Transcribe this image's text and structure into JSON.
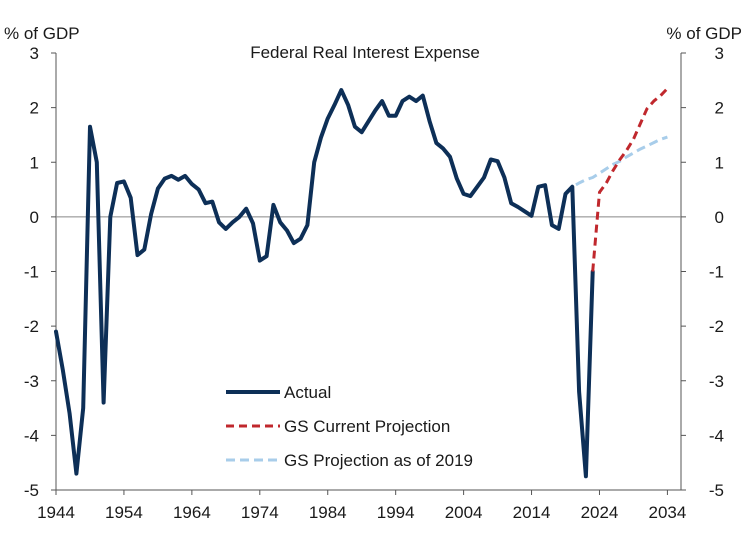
{
  "chart_data": {
    "type": "line",
    "title": "Federal Real Interest Expense",
    "ylabel_left": "% of GDP",
    "ylabel_right": "% of GDP",
    "xlim": [
      1944,
      2036
    ],
    "ylim": [
      -5,
      3
    ],
    "y_ticks": [
      -5,
      -4,
      -3,
      -2,
      -1,
      0,
      1,
      2,
      3
    ],
    "x_ticks": [
      1944,
      1954,
      1964,
      1974,
      1984,
      1994,
      2004,
      2014,
      2024,
      2034
    ],
    "zero_line": true,
    "legend_position": "bottom-center",
    "colors": {
      "actual": "#0d2f57",
      "current": "#c0282d",
      "proj2019": "#a8cdea",
      "axis": "#555555"
    },
    "series": [
      {
        "name": "Actual",
        "style": "solid",
        "points": [
          [
            1944,
            -2.1
          ],
          [
            1945,
            -2.8
          ],
          [
            1946,
            -3.6
          ],
          [
            1947,
            -4.7
          ],
          [
            1948,
            -3.5
          ],
          [
            1949,
            1.65
          ],
          [
            1950,
            1.0
          ],
          [
            1951,
            -3.4
          ],
          [
            1952,
            0.0
          ],
          [
            1953,
            0.62
          ],
          [
            1954,
            0.65
          ],
          [
            1955,
            0.35
          ],
          [
            1956,
            -0.7
          ],
          [
            1957,
            -0.6
          ],
          [
            1958,
            0.05
          ],
          [
            1959,
            0.52
          ],
          [
            1960,
            0.7
          ],
          [
            1961,
            0.75
          ],
          [
            1962,
            0.68
          ],
          [
            1963,
            0.75
          ],
          [
            1964,
            0.6
          ],
          [
            1965,
            0.5
          ],
          [
            1966,
            0.25
          ],
          [
            1967,
            0.28
          ],
          [
            1968,
            -0.1
          ],
          [
            1969,
            -0.22
          ],
          [
            1970,
            -0.1
          ],
          [
            1971,
            0.0
          ],
          [
            1972,
            0.15
          ],
          [
            1973,
            -0.12
          ],
          [
            1974,
            -0.8
          ],
          [
            1975,
            -0.72
          ],
          [
            1976,
            0.22
          ],
          [
            1977,
            -0.1
          ],
          [
            1978,
            -0.25
          ],
          [
            1979,
            -0.48
          ],
          [
            1980,
            -0.4
          ],
          [
            1981,
            -0.15
          ],
          [
            1982,
            1.0
          ],
          [
            1983,
            1.45
          ],
          [
            1984,
            1.8
          ],
          [
            1985,
            2.05
          ],
          [
            1986,
            2.32
          ],
          [
            1987,
            2.05
          ],
          [
            1988,
            1.65
          ],
          [
            1989,
            1.55
          ],
          [
            1990,
            1.75
          ],
          [
            1991,
            1.95
          ],
          [
            1992,
            2.12
          ],
          [
            1993,
            1.85
          ],
          [
            1994,
            1.85
          ],
          [
            1995,
            2.12
          ],
          [
            1996,
            2.2
          ],
          [
            1997,
            2.12
          ],
          [
            1998,
            2.22
          ],
          [
            1999,
            1.75
          ],
          [
            2000,
            1.35
          ],
          [
            2001,
            1.25
          ],
          [
            2002,
            1.1
          ],
          [
            2003,
            0.7
          ],
          [
            2004,
            0.42
          ],
          [
            2005,
            0.38
          ],
          [
            2006,
            0.55
          ],
          [
            2007,
            0.72
          ],
          [
            2008,
            1.05
          ],
          [
            2009,
            1.02
          ],
          [
            2010,
            0.72
          ],
          [
            2011,
            0.25
          ],
          [
            2012,
            0.18
          ],
          [
            2013,
            0.1
          ],
          [
            2014,
            0.02
          ],
          [
            2015,
            0.55
          ],
          [
            2016,
            0.58
          ],
          [
            2017,
            -0.15
          ],
          [
            2018,
            -0.22
          ],
          [
            2019,
            0.42
          ],
          [
            2020,
            0.55
          ],
          [
            2021,
            -3.2
          ],
          [
            2022,
            -4.75
          ],
          [
            2023,
            -1.0
          ]
        ]
      },
      {
        "name": "GS Current Projection",
        "style": "dashed",
        "points": [
          [
            2023,
            -1.0
          ],
          [
            2024,
            0.45
          ],
          [
            2025,
            0.62
          ],
          [
            2026,
            0.85
          ],
          [
            2027,
            1.05
          ],
          [
            2028,
            1.22
          ],
          [
            2029,
            1.42
          ],
          [
            2030,
            1.7
          ],
          [
            2031,
            1.98
          ],
          [
            2032,
            2.12
          ],
          [
            2033,
            2.22
          ],
          [
            2034,
            2.35
          ]
        ]
      },
      {
        "name": "GS Projection as of 2019",
        "style": "dashed",
        "points": [
          [
            2019,
            0.42
          ],
          [
            2020,
            0.55
          ],
          [
            2021,
            0.62
          ],
          [
            2022,
            0.68
          ],
          [
            2023,
            0.72
          ],
          [
            2024,
            0.8
          ],
          [
            2025,
            0.88
          ],
          [
            2026,
            0.96
          ],
          [
            2027,
            1.02
          ],
          [
            2028,
            1.1
          ],
          [
            2029,
            1.17
          ],
          [
            2030,
            1.24
          ],
          [
            2031,
            1.3
          ],
          [
            2032,
            1.36
          ],
          [
            2033,
            1.42
          ],
          [
            2034,
            1.46
          ]
        ]
      }
    ]
  }
}
